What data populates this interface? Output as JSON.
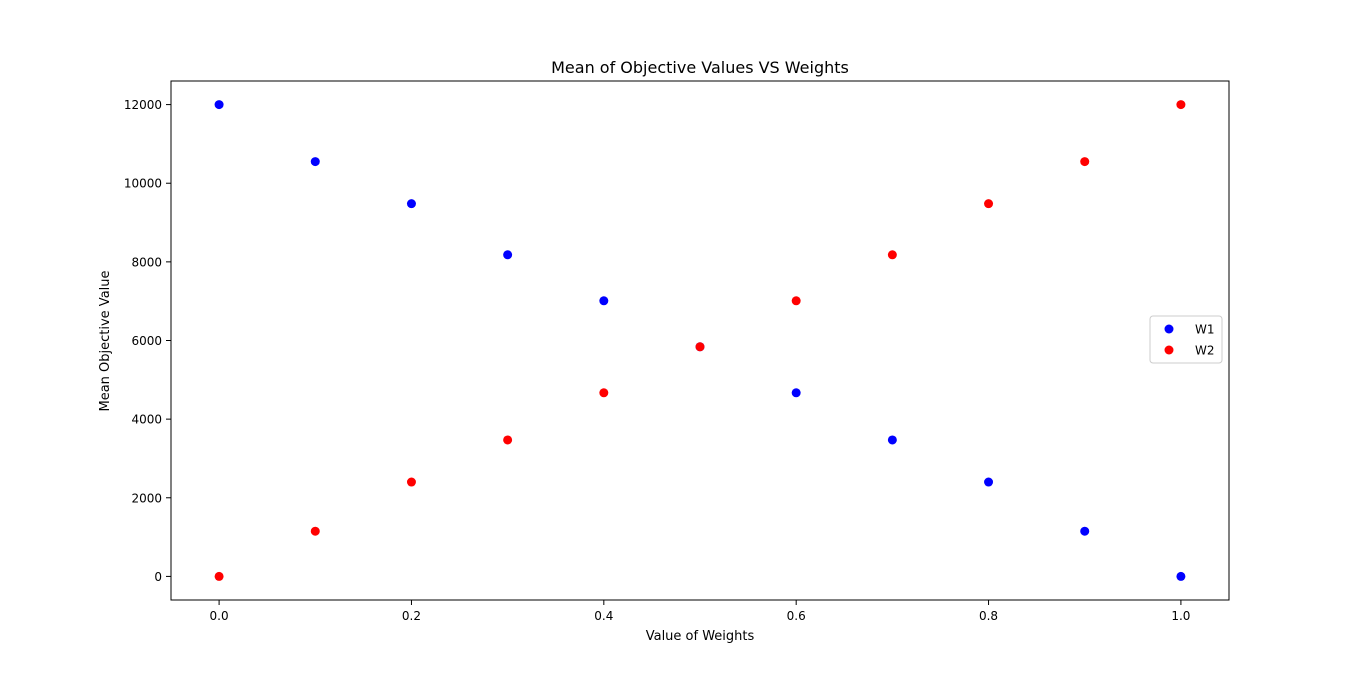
{
  "chart_data": {
    "type": "scatter",
    "title": "Mean of Objective Values VS Weights",
    "xlabel": "Value of Weights",
    "ylabel": "Mean Objective Value",
    "xlim": [
      -0.05,
      1.05
    ],
    "ylim": [
      -600,
      12600
    ],
    "xticks": [
      0.0,
      0.2,
      0.4,
      0.6,
      0.8,
      1.0
    ],
    "xtick_labels": [
      "0.0",
      "0.2",
      "0.4",
      "0.6",
      "0.8",
      "1.0"
    ],
    "yticks": [
      0,
      2000,
      4000,
      6000,
      8000,
      10000,
      12000
    ],
    "ytick_labels": [
      "0",
      "2000",
      "4000",
      "6000",
      "8000",
      "10000",
      "12000"
    ],
    "grid": false,
    "legend_position": "center-right",
    "series": [
      {
        "name": "W1",
        "color": "#0000ff",
        "x": [
          0.0,
          0.1,
          0.2,
          0.3,
          0.4,
          0.5,
          0.6,
          0.7,
          0.8,
          0.9,
          1.0
        ],
        "y": [
          12000,
          10550,
          9480,
          8180,
          7010,
          5840,
          4670,
          3470,
          2400,
          1150,
          0
        ]
      },
      {
        "name": "W2",
        "color": "#ff0000",
        "x": [
          0.0,
          0.1,
          0.2,
          0.3,
          0.4,
          0.5,
          0.6,
          0.7,
          0.8,
          0.9,
          1.0
        ],
        "y": [
          0,
          1150,
          2400,
          3470,
          4670,
          5840,
          7010,
          8180,
          9480,
          10550,
          12000
        ]
      }
    ]
  }
}
